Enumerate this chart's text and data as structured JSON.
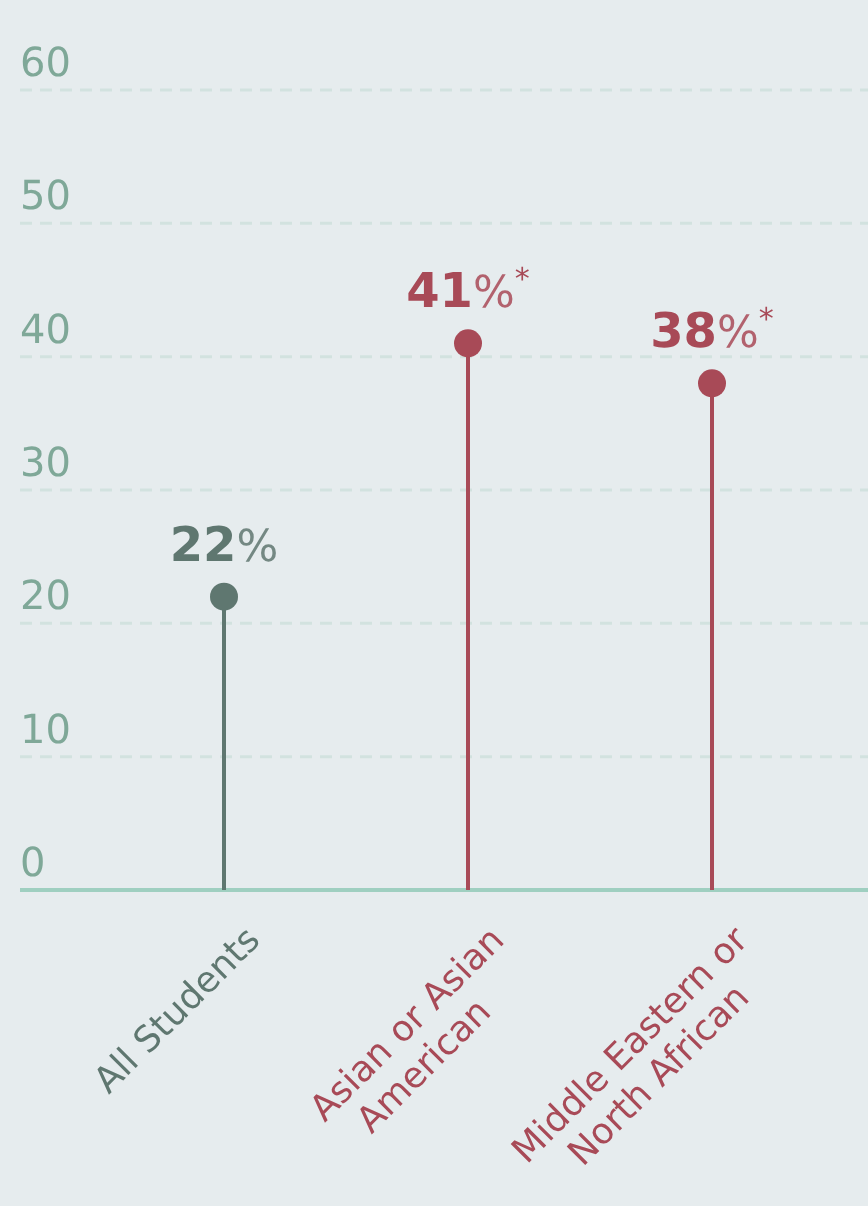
{
  "chart_data": {
    "type": "lollipop",
    "categories": [
      "All Students",
      "Asian or Asian American",
      "Middle Eastern or North African"
    ],
    "values": [
      22,
      41,
      38
    ],
    "colors": [
      "#5f7770",
      "#a84a57",
      "#a84a57"
    ],
    "value_labels": [
      "22%",
      "41%$^{*}$",
      "38%$^{*}$"
    ],
    "ylim": [
      0,
      60
    ],
    "yticks": [
      0,
      10,
      20,
      30,
      40,
      50,
      60
    ],
    "grid": "y",
    "marker": "circle"
  }
}
